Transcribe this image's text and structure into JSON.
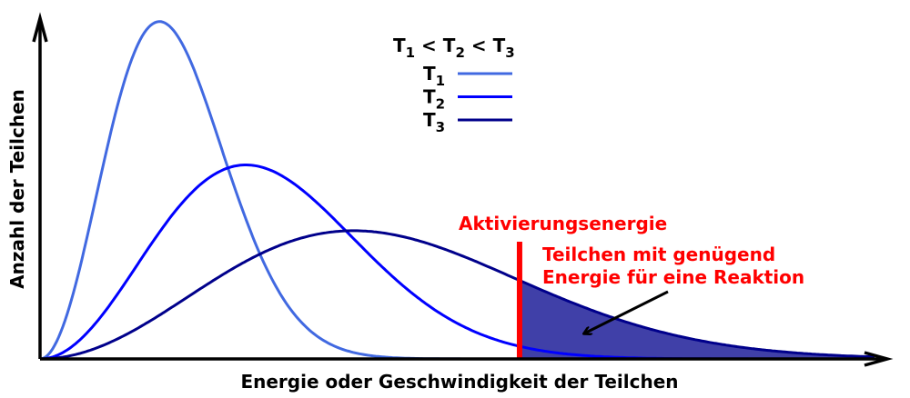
{
  "chart_data": {
    "type": "line",
    "title": "",
    "xlabel": "Energie oder Geschwindigkeit der Teilchen",
    "ylabel": "Anzahl der Teilchen",
    "xlim": [
      0,
      10
    ],
    "ylim": [
      0,
      1.01
    ],
    "grid": false,
    "ticks": false,
    "legend": {
      "placement": "top-center",
      "heading": {
        "t1": "T",
        "s1": "1",
        "lt1": " < ",
        "t2": "T",
        "s2": "2",
        "lt2": " < ",
        "t3": "T",
        "s3": "3"
      },
      "entries": [
        {
          "base": "T",
          "sub": "1"
        },
        {
          "base": "T",
          "sub": "2"
        },
        {
          "base": "T",
          "sub": "3"
        }
      ]
    },
    "series": [
      {
        "name": "T1",
        "color": "#4169e1",
        "peak_x": 1.41,
        "peak_y": 1.0
      },
      {
        "name": "T2",
        "color": "#0000ff",
        "peak_x": 2.43,
        "peak_y": 0.575
      },
      {
        "name": "T3",
        "color": "#00008b",
        "peak_x": 3.7,
        "peak_y": 0.38
      }
    ],
    "activation_energy": {
      "x": 5.66,
      "label": "Aktivierungsenergie",
      "color": "#ff0000"
    },
    "shaded_area": {
      "series": "T3",
      "from_x": 5.66,
      "color": "#4040a8",
      "annotation_line1": "Teilchen mit genügend",
      "annotation_line2": "Energie für eine Reaktion"
    }
  }
}
